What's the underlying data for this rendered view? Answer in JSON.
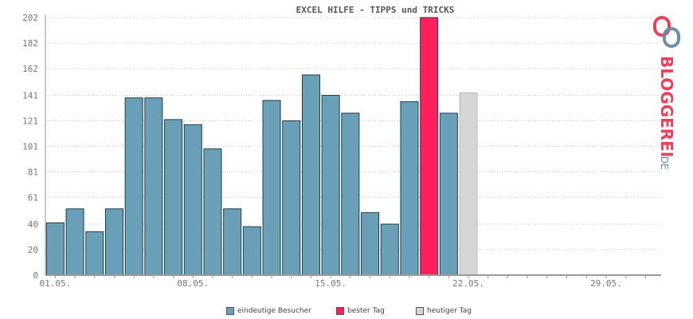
{
  "chart_data": {
    "type": "bar",
    "title": "EXCEL HILFE - TIPPS und TRICKS",
    "y_ticks": [
      "0",
      "20",
      "40",
      "61",
      "81",
      "101",
      "121",
      "141",
      "162",
      "182",
      "202"
    ],
    "ylim": [
      0,
      202
    ],
    "x_tick_labels": [
      {
        "day": 1,
        "label": "01.05."
      },
      {
        "day": 8,
        "label": "08.05."
      },
      {
        "day": 15,
        "label": "15.05."
      },
      {
        "day": 22,
        "label": "22.05."
      },
      {
        "day": 29,
        "label": "29.05."
      }
    ],
    "days_in_axis": 31,
    "days": [
      1,
      2,
      3,
      4,
      5,
      6,
      7,
      8,
      9,
      10,
      11,
      12,
      13,
      14,
      15,
      16,
      17,
      18,
      19,
      20,
      21
    ],
    "values": [
      41,
      52,
      34,
      52,
      139,
      139,
      122,
      118,
      99,
      52,
      38,
      137,
      121,
      157,
      141,
      127,
      49,
      40,
      136,
      202,
      127
    ],
    "series_types": [
      "normal",
      "normal",
      "normal",
      "normal",
      "normal",
      "normal",
      "normal",
      "normal",
      "normal",
      "normal",
      "normal",
      "normal",
      "normal",
      "normal",
      "normal",
      "normal",
      "normal",
      "normal",
      "normal",
      "best",
      "normal"
    ],
    "today": {
      "day": 22,
      "value": 143
    },
    "grid": true,
    "colors": {
      "normal": "#6a9fb8",
      "best": "#ff1f5a",
      "today": "#d6d6d6",
      "bar_stroke": "#1f3d4a",
      "grid": "#c8c8c8",
      "axis": "#999999"
    },
    "legend": [
      {
        "label": "eindeutige Besucher",
        "color": "#6a9fb8"
      },
      {
        "label": "bester Tag",
        "color": "#ff1f5a"
      },
      {
        "label": "heutiger Tag",
        "color": "#d6d6d6"
      }
    ],
    "legend_placement": "bottom"
  },
  "logo": {
    "text": "BLOGGEREI",
    "suffix": ".DE"
  }
}
